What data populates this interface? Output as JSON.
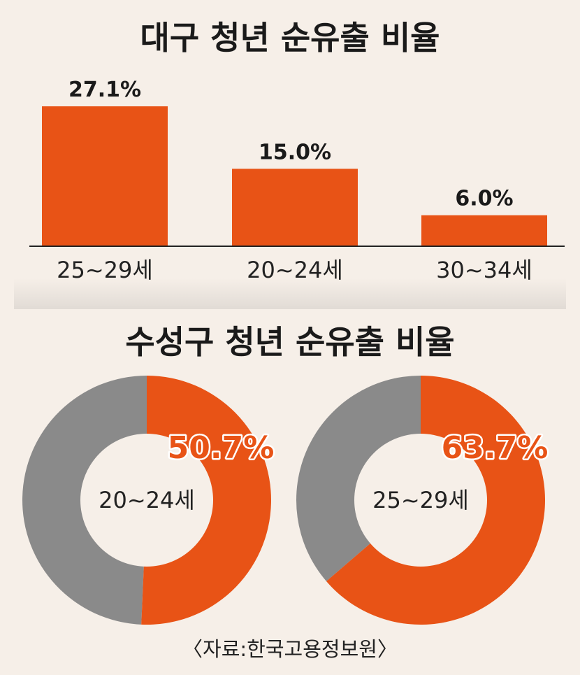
{
  "chart_data": [
    {
      "type": "bar",
      "title": "대구 청년 순유출 비율",
      "categories": [
        "25~29세",
        "20~24세",
        "30~34세"
      ],
      "values": [
        27.1,
        15.0,
        6.0
      ],
      "value_labels": [
        "27.1%",
        "15.0%",
        "6.0%"
      ],
      "unit": "%",
      "ylim": [
        0,
        27.1
      ],
      "grid": false,
      "colors": {
        "bar": "#e85316",
        "axis": "#222222"
      }
    },
    {
      "type": "pie",
      "title": "수성구 청년 순유출 비율",
      "donuts": [
        {
          "center_label": "20~24세",
          "value": 50.7,
          "value_label": "50.7%"
        },
        {
          "center_label": "25~29세",
          "value": 63.7,
          "value_label": "63.7%"
        }
      ],
      "colors": {
        "value": "#e85316",
        "remainder": "#8a8a8a",
        "hole": "#f6efe8"
      }
    }
  ],
  "source": "〈자료:한국고용정보원〉"
}
